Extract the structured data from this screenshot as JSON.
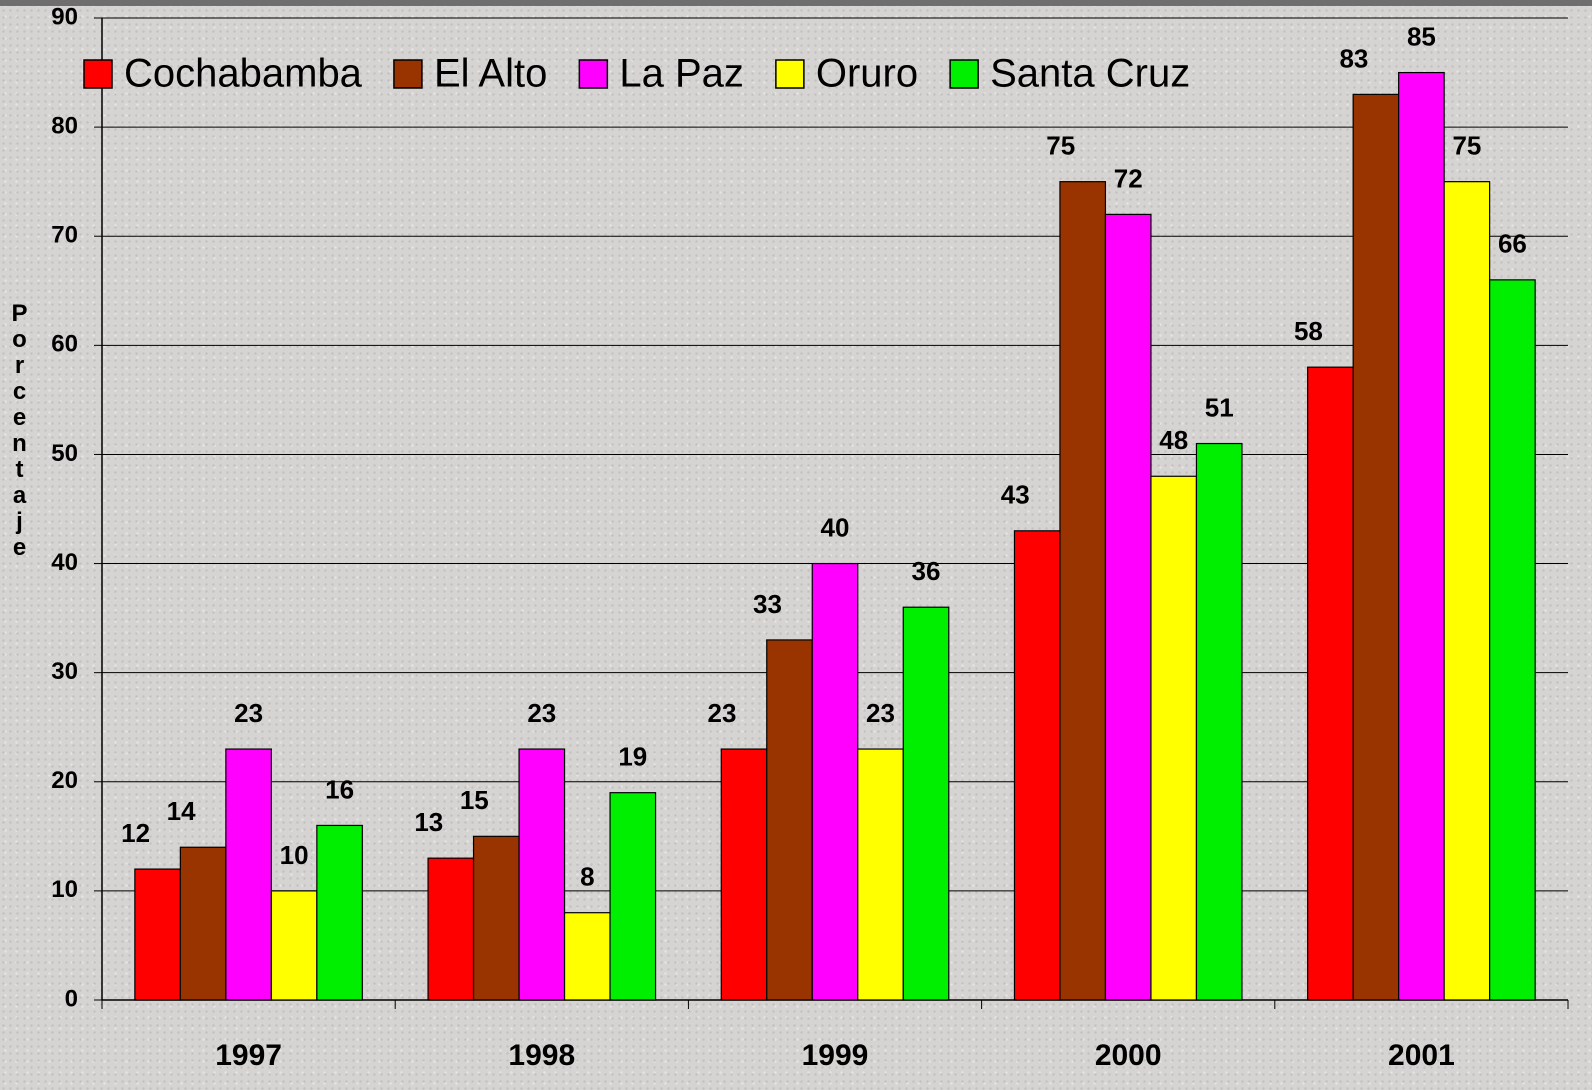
{
  "chart_data": {
    "type": "bar",
    "y_label": "Porcentaje",
    "categories": [
      "1997",
      "1998",
      "1999",
      "2000",
      "2001"
    ],
    "series": [
      {
        "name": "Cochabamba",
        "color": "#ff0000",
        "values": [
          12,
          13,
          23,
          43,
          58
        ]
      },
      {
        "name": "El Alto",
        "color": "#993300",
        "values": [
          14,
          15,
          33,
          75,
          83
        ]
      },
      {
        "name": "La Paz",
        "color": "#ff00ff",
        "values": [
          23,
          23,
          40,
          72,
          85
        ]
      },
      {
        "name": "Oruro",
        "color": "#ffff00",
        "values": [
          10,
          8,
          23,
          48,
          75
        ]
      },
      {
        "name": "Santa Cruz",
        "color": "#00ee00",
        "values": [
          16,
          19,
          36,
          51,
          66
        ]
      }
    ],
    "ylim": [
      0,
      90
    ],
    "yticks": [
      0,
      10,
      20,
      30,
      40,
      50,
      60,
      70,
      80,
      90
    ],
    "grid": true,
    "legend": "top"
  }
}
